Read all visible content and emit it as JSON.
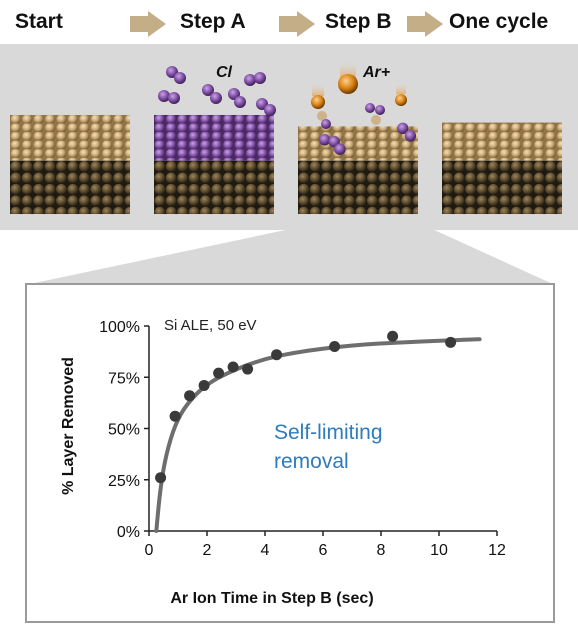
{
  "steps": {
    "start": "Start",
    "step_a": "Step A",
    "step_b": "Step B",
    "one_cycle": "One cycle"
  },
  "species": {
    "chlorine": "Cl",
    "argon_ion": "Ar+"
  },
  "colors": {
    "arrow": "#c4ae88",
    "panel_background": "#d9d9d9",
    "substrate_top": "#d7b98a",
    "substrate_dark": "#2d2416",
    "chlorine": "#7b4aa0",
    "argon": "#d67d10",
    "fit_curve": "#6e6e6e",
    "data_point": "#3a3a3a",
    "annotation": "#2e7bbd"
  },
  "chart_data": {
    "type": "scatter",
    "title": "",
    "inset_label": "Si ALE, 50 eV",
    "annotation": [
      "Self-limiting",
      "removal"
    ],
    "xlabel": "Ar Ion Time in Step B (sec)",
    "ylabel": "% Layer Removed",
    "xlim": [
      0,
      12
    ],
    "ylim": [
      0,
      100
    ],
    "x_ticks": [
      0,
      2,
      4,
      6,
      8,
      10,
      12
    ],
    "y_ticks": [
      0,
      25,
      50,
      75,
      100
    ],
    "y_tick_labels": [
      "0%",
      "25%",
      "50%",
      "75%",
      "100%"
    ],
    "points": [
      {
        "x": 0.4,
        "y": 26
      },
      {
        "x": 0.9,
        "y": 56
      },
      {
        "x": 1.4,
        "y": 66
      },
      {
        "x": 1.9,
        "y": 71
      },
      {
        "x": 2.4,
        "y": 77
      },
      {
        "x": 2.9,
        "y": 80
      },
      {
        "x": 3.4,
        "y": 79
      },
      {
        "x": 4.4,
        "y": 86
      },
      {
        "x": 6.4,
        "y": 90
      },
      {
        "x": 8.4,
        "y": 95
      },
      {
        "x": 10.4,
        "y": 92
      }
    ],
    "fit_curve": [
      {
        "x": 0.25,
        "y": 0
      },
      {
        "x": 0.4,
        "y": 22
      },
      {
        "x": 0.6,
        "y": 38
      },
      {
        "x": 0.9,
        "y": 52
      },
      {
        "x": 1.3,
        "y": 62
      },
      {
        "x": 2.0,
        "y": 72
      },
      {
        "x": 3.0,
        "y": 79
      },
      {
        "x": 4.0,
        "y": 84
      },
      {
        "x": 5.0,
        "y": 87
      },
      {
        "x": 6.0,
        "y": 89
      },
      {
        "x": 7.0,
        "y": 90.5
      },
      {
        "x": 8.0,
        "y": 91.5
      },
      {
        "x": 9.0,
        "y": 92.2
      },
      {
        "x": 10.0,
        "y": 92.8
      },
      {
        "x": 11.4,
        "y": 93.5
      }
    ]
  }
}
